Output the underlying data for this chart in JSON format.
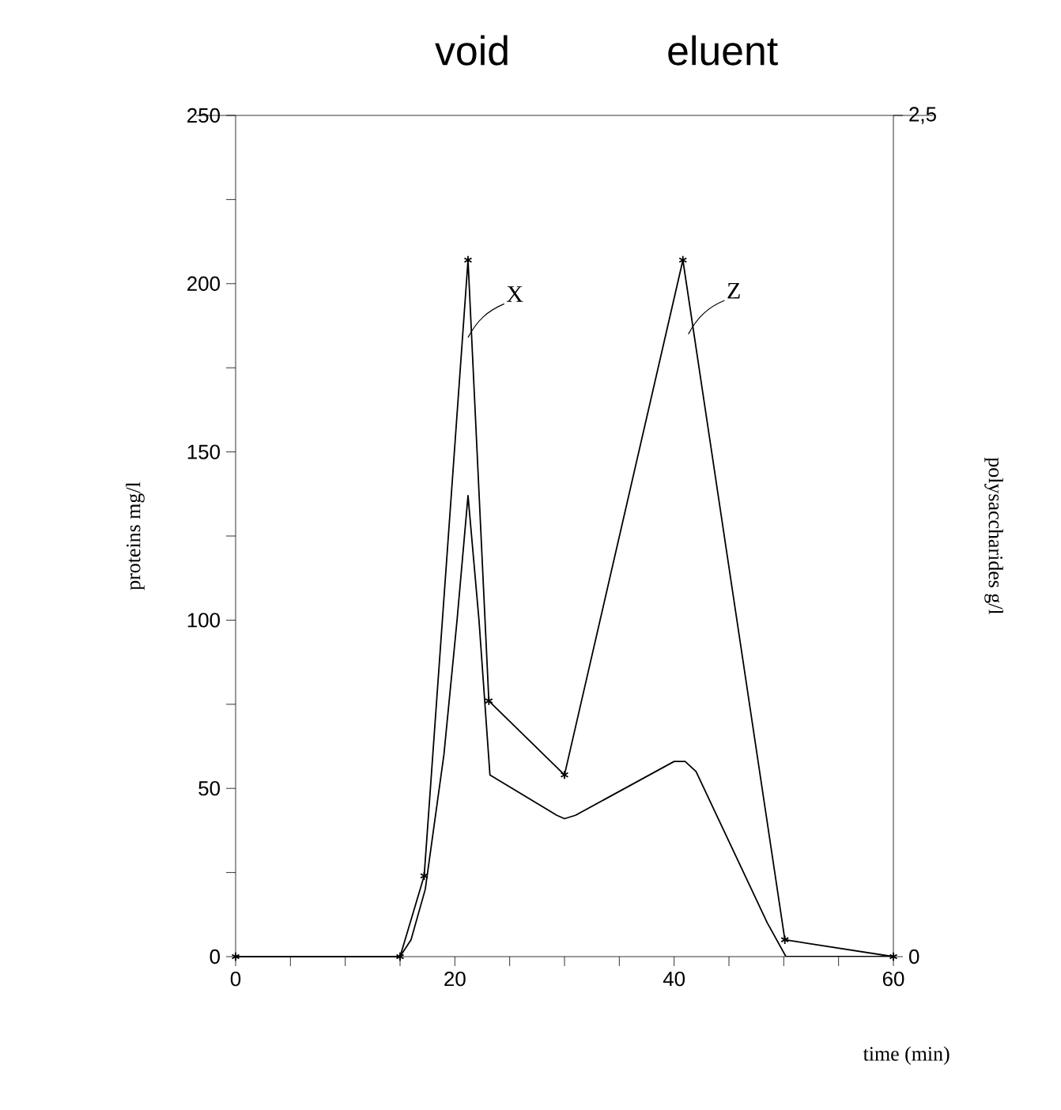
{
  "chart_data": {
    "type": "line",
    "xlabel": "time (min)",
    "ylabel": "proteins mg/l",
    "y2label": "polysaccharides g/l",
    "annotations": [
      "void",
      "eluent",
      {
        "text": "X",
        "x": 21.2,
        "y": 184
      },
      {
        "text": "Z",
        "x": 41.3,
        "y": 185
      }
    ],
    "series": [
      {
        "color": "#000000",
        "marker": "cross",
        "x": [
          0,
          15,
          17.2,
          21.2,
          23.1,
          30,
          40.8,
          50.1,
          60
        ],
        "values": [
          0,
          0,
          24,
          207,
          76,
          54,
          207,
          5,
          0
        ]
      },
      {
        "color": "#000000",
        "marker": "none",
        "axis": "y2",
        "x": [
          15,
          16,
          17.3,
          19,
          20.2,
          21.2,
          22.2,
          23.2,
          29.3,
          30,
          31,
          40,
          41,
          42,
          48.5,
          50.2,
          60
        ],
        "values": [
          0,
          0.05,
          0.2,
          0.6,
          1.0,
          1.37,
          1.0,
          0.54,
          0.42,
          0.41,
          0.42,
          0.58,
          0.58,
          0.55,
          0.1,
          0,
          0
        ]
      }
    ],
    "xlim": [
      0,
      60
    ],
    "xticks": [
      0,
      {
        "value": 5,
        "label": null
      },
      {
        "value": 10,
        "label": null
      },
      {
        "value": 15,
        "label": null
      },
      20,
      {
        "value": 25,
        "label": null
      },
      {
        "value": 30,
        "label": null
      },
      {
        "value": 35,
        "label": null
      },
      40,
      {
        "value": 45,
        "label": null
      },
      {
        "value": 50,
        "label": null
      },
      {
        "value": 55,
        "label": null
      },
      60
    ],
    "ylim": [
      0,
      250
    ],
    "yticks": [
      0,
      {
        "value": 25,
        "label": null
      },
      50,
      {
        "value": 75,
        "label": null
      },
      100,
      {
        "value": 125,
        "label": null
      },
      150,
      {
        "value": 175,
        "label": null
      },
      200,
      {
        "value": 225,
        "label": null
      },
      250
    ],
    "y2lim": [
      0,
      2.5
    ],
    "y2ticks": [
      0,
      {
        "value": 2.5,
        "label": "2,5"
      }
    ]
  }
}
